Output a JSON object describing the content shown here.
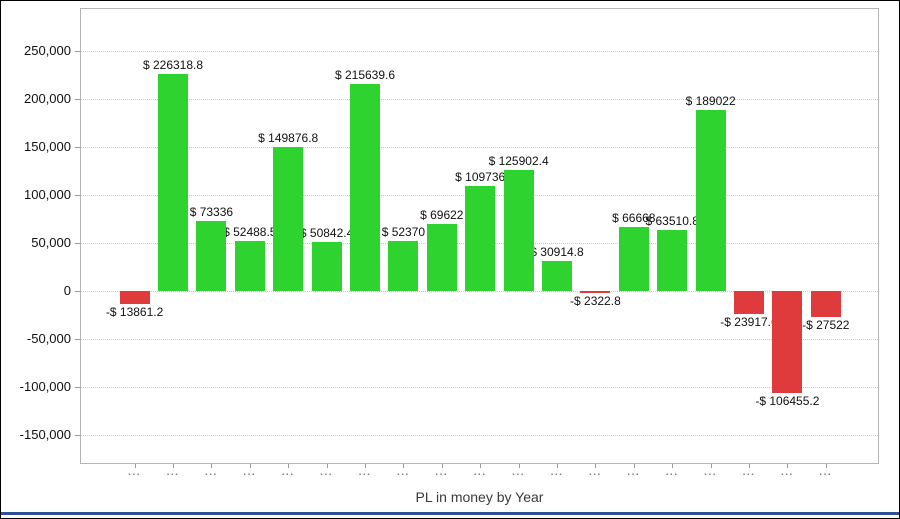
{
  "window": {
    "bottom_accent_color": "#2e4f99"
  },
  "chart_data": {
    "type": "bar",
    "title": "PL in money by Year",
    "xlabel": "",
    "ylabel": "",
    "legend": "none",
    "grid": "horizontal-dotted",
    "ylim": [
      -180000,
      295000
    ],
    "ytick_values": [
      250000,
      200000,
      150000,
      100000,
      50000,
      0,
      -50000,
      -100000,
      -150000
    ],
    "ytick_labels": [
      "250,000",
      "200,000",
      "150,000",
      "100,000",
      "50,000",
      "0",
      "-50,000",
      "-100,000",
      "-150,000"
    ],
    "categories": [
      "...",
      "...",
      "...",
      "...",
      "...",
      "...",
      "...",
      "...",
      "...",
      "...",
      "...",
      "...",
      "...",
      "...",
      "...",
      "...",
      "...",
      "...",
      "..."
    ],
    "values": [
      -13861.2,
      226318.8,
      73336,
      52488.5,
      149876.8,
      50842.4,
      215639.6,
      52370,
      69622,
      109736,
      125902.4,
      30914.8,
      -2322.8,
      66668,
      63510.8,
      189022,
      -23917.6,
      -106455.2,
      -27522
    ],
    "bar_labels": [
      "-$ 13861.2",
      "$ 226318.8",
      "$ 73336",
      "$ 52488.5",
      "$ 149876.8",
      "$ 50842.4",
      "$ 215639.6",
      "$ 52370",
      "$ 69622",
      "$ 109736",
      "$ 125902.4",
      "$ 30914.8",
      "-$ 2322.8",
      "$ 66668",
      "$ 63510.8",
      "$ 189022",
      "-$ 23917.6",
      "-$ 106455.2",
      "-$ 27522"
    ],
    "positive_color": "#2fd32f",
    "negative_color": "#df3a3c"
  }
}
